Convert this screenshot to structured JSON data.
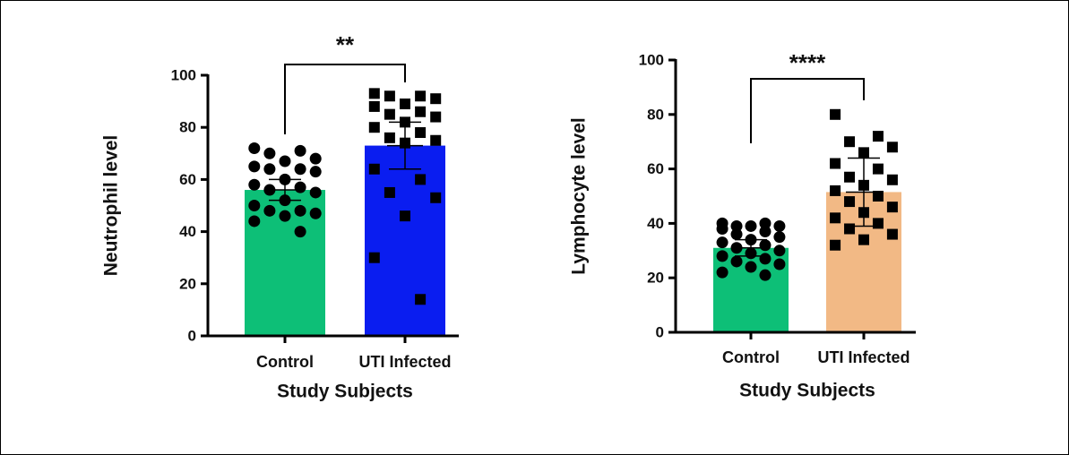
{
  "chart_data": [
    {
      "type": "bar",
      "y_label": "Neutrophil level",
      "x_label": "Study Subjects",
      "categories": [
        "Control",
        "UTI Infected"
      ],
      "values": [
        56,
        73
      ],
      "errors": [
        4,
        9
      ],
      "colors": [
        "#0dbf77",
        "#0a1df0"
      ],
      "markers": [
        "circle",
        "square"
      ],
      "points": [
        [
          72,
          71,
          70,
          68,
          67,
          65,
          64,
          64,
          63,
          60,
          58,
          57,
          56,
          55,
          52,
          50,
          48,
          48,
          47,
          46,
          44,
          40
        ],
        [
          93,
          92,
          92,
          91,
          89,
          88,
          86,
          85,
          84,
          82,
          80,
          78,
          76,
          75,
          74,
          64,
          60,
          55,
          53,
          46,
          30,
          14
        ]
      ],
      "annotation": "**",
      "ylim": [
        0,
        100
      ],
      "yticks": [
        0,
        20,
        40,
        60,
        80,
        100
      ]
    },
    {
      "type": "bar",
      "y_label": "Lymphocyte level",
      "x_label": "Study Subjects",
      "categories": [
        "Control",
        "UTI Infected"
      ],
      "values": [
        31,
        51.5
      ],
      "errors": [
        3,
        12.5
      ],
      "colors": [
        "#0dbf77",
        "#f2b985"
      ],
      "markers": [
        "circle",
        "square"
      ],
      "points": [
        [
          40,
          40,
          39,
          39,
          39,
          38,
          37,
          36,
          35,
          34,
          33,
          32,
          31,
          30,
          29,
          28,
          27,
          26,
          25,
          24,
          22,
          21
        ],
        [
          80,
          72,
          70,
          68,
          66,
          62,
          60,
          57,
          56,
          54,
          52,
          50,
          48,
          46,
          44,
          42,
          40,
          38,
          36,
          34,
          32
        ]
      ],
      "annotation": "****",
      "ylim": [
        0,
        100
      ],
      "yticks": [
        0,
        20,
        40,
        60,
        80,
        100
      ]
    }
  ]
}
